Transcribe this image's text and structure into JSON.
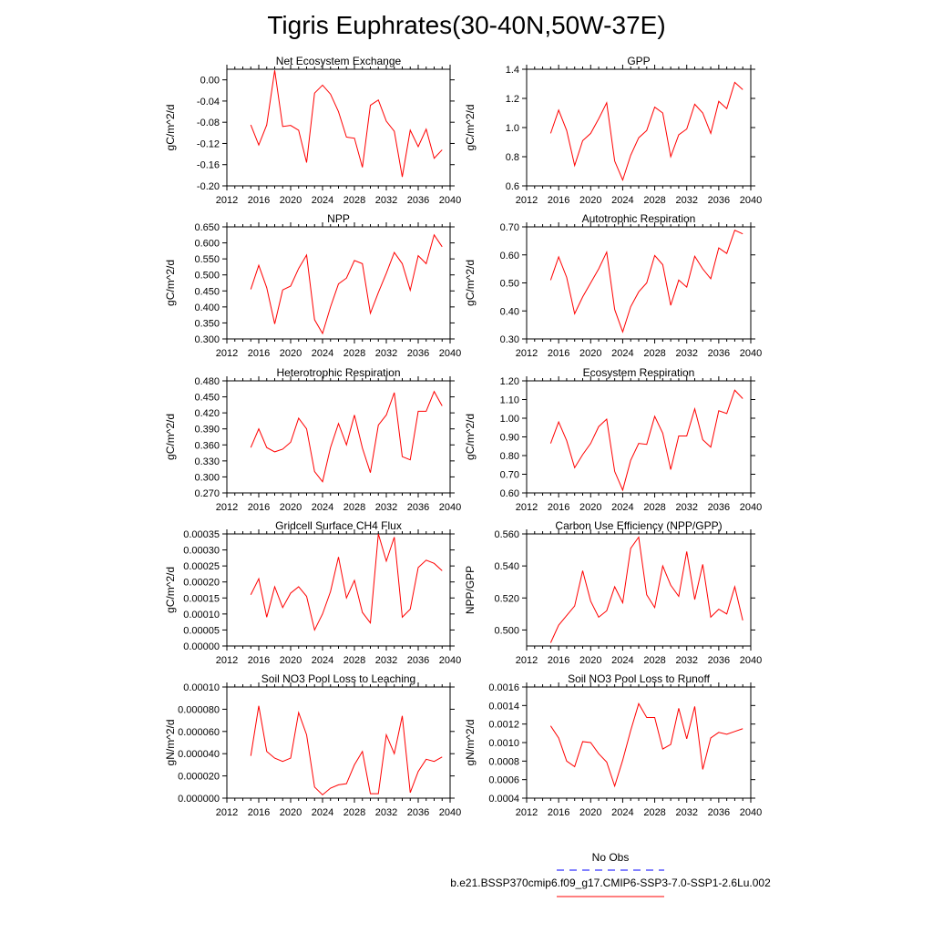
{
  "page": {
    "title": "Tigris Euphrates(30-40N,50W-37E)"
  },
  "legend": {
    "entries": [
      {
        "label": "No Obs",
        "color": "#0000ff",
        "style": "dashed"
      },
      {
        "label": "b.e21.BSSP370cmip6.f09_g17.CMIP6-SSP3-7.0-SSP1-2.6Lu.002",
        "color": "#ff0000",
        "style": "solid"
      }
    ]
  },
  "chart_data": [
    {
      "type": "line",
      "title": "Net Ecosystem Exchange",
      "xlabel": "",
      "ylabel": "gC/m^2/d",
      "xlim": [
        2012,
        2040
      ],
      "ylim": [
        -0.2,
        0.02
      ],
      "xticks": [
        2012,
        2016,
        2020,
        2024,
        2028,
        2032,
        2036,
        2040
      ],
      "yticks": [
        0.0,
        -0.04,
        -0.08,
        -0.12,
        -0.16,
        -0.2
      ],
      "ytick_labels": [
        "0.00",
        "-0.04",
        "-0.08",
        "-0.12",
        "-0.16",
        "-0.20"
      ],
      "color": "#ff0000",
      "x": [
        2015,
        2016,
        2017,
        2018,
        2019,
        2020,
        2021,
        2022,
        2023,
        2024,
        2025,
        2026,
        2027,
        2028,
        2029,
        2030,
        2031,
        2032,
        2033,
        2034,
        2035,
        2036,
        2037,
        2038,
        2039
      ],
      "values": [
        -0.085,
        -0.123,
        -0.085,
        0.018,
        -0.088,
        -0.086,
        -0.095,
        -0.156,
        -0.025,
        -0.01,
        -0.027,
        -0.06,
        -0.108,
        -0.11,
        -0.165,
        -0.048,
        -0.038,
        -0.078,
        -0.097,
        -0.183,
        -0.095,
        -0.126,
        -0.093,
        -0.148,
        -0.132
      ]
    },
    {
      "type": "line",
      "title": "GPP",
      "xlabel": "",
      "ylabel": "gC/m^2/d",
      "xlim": [
        2012,
        2040
      ],
      "ylim": [
        0.6,
        1.4
      ],
      "xticks": [
        2012,
        2016,
        2020,
        2024,
        2028,
        2032,
        2036,
        2040
      ],
      "yticks": [
        0.6,
        0.8,
        1.0,
        1.2,
        1.4
      ],
      "ytick_labels": [
        "0.6",
        "0.8",
        "1.0",
        "1.2",
        "1.4"
      ],
      "color": "#ff0000",
      "x": [
        2015,
        2016,
        2017,
        2018,
        2019,
        2020,
        2021,
        2022,
        2023,
        2024,
        2025,
        2026,
        2027,
        2028,
        2029,
        2030,
        2031,
        2032,
        2033,
        2034,
        2035,
        2036,
        2037,
        2038,
        2039
      ],
      "values": [
        0.96,
        1.12,
        0.98,
        0.74,
        0.91,
        0.96,
        1.06,
        1.17,
        0.77,
        0.64,
        0.81,
        0.93,
        0.98,
        1.14,
        1.1,
        0.8,
        0.95,
        0.99,
        1.16,
        1.1,
        0.96,
        1.18,
        1.13,
        1.31,
        1.26
      ]
    },
    {
      "type": "line",
      "title": "NPP",
      "xlabel": "",
      "ylabel": "gC/m^2/d",
      "xlim": [
        2012,
        2040
      ],
      "ylim": [
        0.3,
        0.65
      ],
      "xticks": [
        2012,
        2016,
        2020,
        2024,
        2028,
        2032,
        2036,
        2040
      ],
      "yticks": [
        0.3,
        0.35,
        0.4,
        0.45,
        0.5,
        0.55,
        0.6,
        0.65
      ],
      "ytick_labels": [
        "0.300",
        "0.350",
        "0.400",
        "0.450",
        "0.500",
        "0.550",
        "0.600",
        "0.650"
      ],
      "color": "#ff0000",
      "x": [
        2015,
        2016,
        2017,
        2018,
        2019,
        2020,
        2021,
        2022,
        2023,
        2024,
        2025,
        2026,
        2027,
        2028,
        2029,
        2030,
        2031,
        2032,
        2033,
        2034,
        2035,
        2036,
        2037,
        2038,
        2039
      ],
      "values": [
        0.455,
        0.53,
        0.46,
        0.347,
        0.453,
        0.465,
        0.52,
        0.562,
        0.36,
        0.317,
        0.4,
        0.472,
        0.49,
        0.545,
        0.535,
        0.38,
        0.445,
        0.505,
        0.57,
        0.535,
        0.452,
        0.56,
        0.535,
        0.625,
        0.588
      ]
    },
    {
      "type": "line",
      "title": "Autotrophic Respiration",
      "xlabel": "",
      "ylabel": "gC/m^2/d",
      "xlim": [
        2012,
        2040
      ],
      "ylim": [
        0.3,
        0.7
      ],
      "xticks": [
        2012,
        2016,
        2020,
        2024,
        2028,
        2032,
        2036,
        2040
      ],
      "yticks": [
        0.3,
        0.4,
        0.5,
        0.6,
        0.7
      ],
      "ytick_labels": [
        "0.30",
        "0.40",
        "0.50",
        "0.60",
        "0.70"
      ],
      "color": "#ff0000",
      "x": [
        2015,
        2016,
        2017,
        2018,
        2019,
        2020,
        2021,
        2022,
        2023,
        2024,
        2025,
        2026,
        2027,
        2028,
        2029,
        2030,
        2031,
        2032,
        2033,
        2034,
        2035,
        2036,
        2037,
        2038,
        2039
      ],
      "values": [
        0.51,
        0.593,
        0.52,
        0.39,
        0.45,
        0.5,
        0.55,
        0.61,
        0.405,
        0.325,
        0.415,
        0.468,
        0.5,
        0.598,
        0.565,
        0.42,
        0.51,
        0.485,
        0.595,
        0.55,
        0.515,
        0.625,
        0.605,
        0.688,
        0.675
      ]
    },
    {
      "type": "line",
      "title": "Heterotrophic Respiration",
      "xlabel": "",
      "ylabel": "gC/m^2/d",
      "xlim": [
        2012,
        2040
      ],
      "ylim": [
        0.27,
        0.48
      ],
      "xticks": [
        2012,
        2016,
        2020,
        2024,
        2028,
        2032,
        2036,
        2040
      ],
      "yticks": [
        0.27,
        0.3,
        0.33,
        0.36,
        0.39,
        0.42,
        0.45,
        0.48
      ],
      "ytick_labels": [
        "0.270",
        "0.300",
        "0.330",
        "0.360",
        "0.390",
        "0.420",
        "0.450",
        "0.480"
      ],
      "color": "#ff0000",
      "x": [
        2015,
        2016,
        2017,
        2018,
        2019,
        2020,
        2021,
        2022,
        2023,
        2024,
        2025,
        2026,
        2027,
        2028,
        2029,
        2030,
        2031,
        2032,
        2033,
        2034,
        2035,
        2036,
        2037,
        2038,
        2039
      ],
      "values": [
        0.355,
        0.39,
        0.355,
        0.347,
        0.352,
        0.365,
        0.41,
        0.39,
        0.31,
        0.291,
        0.355,
        0.4,
        0.36,
        0.416,
        0.354,
        0.308,
        0.397,
        0.416,
        0.458,
        0.338,
        0.332,
        0.423,
        0.423,
        0.46,
        0.433
      ]
    },
    {
      "type": "line",
      "title": "Ecosystem Respiration",
      "xlabel": "",
      "ylabel": "gC/m^2/d",
      "xlim": [
        2012,
        2040
      ],
      "ylim": [
        0.6,
        1.2
      ],
      "xticks": [
        2012,
        2016,
        2020,
        2024,
        2028,
        2032,
        2036,
        2040
      ],
      "yticks": [
        0.6,
        0.7,
        0.8,
        0.9,
        1.0,
        1.1,
        1.2
      ],
      "ytick_labels": [
        "0.60",
        "0.70",
        "0.80",
        "0.90",
        "1.00",
        "1.10",
        "1.20"
      ],
      "color": "#ff0000",
      "x": [
        2015,
        2016,
        2017,
        2018,
        2019,
        2020,
        2021,
        2022,
        2023,
        2024,
        2025,
        2026,
        2027,
        2028,
        2029,
        2030,
        2031,
        2032,
        2033,
        2034,
        2035,
        2036,
        2037,
        2038,
        2039
      ],
      "values": [
        0.865,
        0.98,
        0.88,
        0.735,
        0.805,
        0.865,
        0.955,
        0.995,
        0.715,
        0.615,
        0.775,
        0.865,
        0.86,
        1.01,
        0.92,
        0.725,
        0.905,
        0.905,
        1.05,
        0.885,
        0.845,
        1.04,
        1.025,
        1.15,
        1.105
      ]
    },
    {
      "type": "line",
      "title": "Gridcell Surface CH4 Flux",
      "xlabel": "",
      "ylabel": "gC/m^2/d",
      "xlim": [
        2012,
        2040
      ],
      "ylim": [
        0,
        0.00035
      ],
      "xticks": [
        2012,
        2016,
        2020,
        2024,
        2028,
        2032,
        2036,
        2040
      ],
      "yticks": [
        0,
        5e-05,
        0.0001,
        0.00015,
        0.0002,
        0.00025,
        0.0003,
        0.00035
      ],
      "ytick_labels": [
        "0.00000",
        "0.00005",
        "0.00010",
        "0.00015",
        "0.00020",
        "0.00025",
        "0.00030",
        "0.00035"
      ],
      "color": "#ff0000",
      "x": [
        2015,
        2016,
        2017,
        2018,
        2019,
        2020,
        2021,
        2022,
        2023,
        2024,
        2025,
        2026,
        2027,
        2028,
        2029,
        2030,
        2031,
        2032,
        2033,
        2034,
        2035,
        2036,
        2037,
        2038,
        2039
      ],
      "values": [
        0.00016,
        0.00021,
        9e-05,
        0.000185,
        0.00012,
        0.000165,
        0.000185,
        0.000155,
        5e-05,
        0.0001,
        0.00017,
        0.000278,
        0.00015,
        0.000205,
        0.000105,
        7.2e-05,
        0.00035,
        0.000265,
        0.00034,
        9e-05,
        0.000115,
        0.000245,
        0.000268,
        0.000258,
        0.000235
      ]
    },
    {
      "type": "line",
      "title": "Carbon Use Efficiency (NPP/GPP)",
      "xlabel": "",
      "ylabel": "NPP/GPP",
      "xlim": [
        2012,
        2040
      ],
      "ylim": [
        0.49,
        0.56
      ],
      "xticks": [
        2012,
        2016,
        2020,
        2024,
        2028,
        2032,
        2036,
        2040
      ],
      "yticks": [
        0.5,
        0.52,
        0.54,
        0.56
      ],
      "ytick_labels": [
        "0.500",
        "0.520",
        "0.540",
        "0.560"
      ],
      "color": "#ff0000",
      "x": [
        2015,
        2016,
        2017,
        2018,
        2019,
        2020,
        2021,
        2022,
        2023,
        2024,
        2025,
        2026,
        2027,
        2028,
        2029,
        2030,
        2031,
        2032,
        2033,
        2034,
        2035,
        2036,
        2037,
        2038,
        2039
      ],
      "values": [
        0.492,
        0.503,
        0.509,
        0.515,
        0.537,
        0.518,
        0.508,
        0.512,
        0.527,
        0.517,
        0.551,
        0.558,
        0.522,
        0.514,
        0.54,
        0.528,
        0.521,
        0.549,
        0.519,
        0.541,
        0.508,
        0.513,
        0.51,
        0.527,
        0.506
      ]
    },
    {
      "type": "line",
      "title": "Soil NO3 Pool Loss to Leaching",
      "xlabel": "",
      "ylabel": "gN/m^2/d",
      "xlim": [
        2012,
        2040
      ],
      "ylim": [
        0,
        0.0001
      ],
      "xticks": [
        2012,
        2016,
        2020,
        2024,
        2028,
        2032,
        2036,
        2040
      ],
      "yticks": [
        0,
        2e-05,
        4e-05,
        6e-05,
        8e-05,
        0.0001
      ],
      "ytick_labels": [
        "0.000000",
        "0.000020",
        "0.000040",
        "0.000060",
        "0.000080",
        "0.00010"
      ],
      "color": "#ff0000",
      "x": [
        2015,
        2016,
        2017,
        2018,
        2019,
        2020,
        2021,
        2022,
        2023,
        2024,
        2025,
        2026,
        2027,
        2028,
        2029,
        2030,
        2031,
        2032,
        2033,
        2034,
        2035,
        2036,
        2037,
        2038,
        2039
      ],
      "values": [
        3.8e-05,
        8.3e-05,
        4.2e-05,
        3.6e-05,
        3.3e-05,
        3.6e-05,
        7.7e-05,
        5.7e-05,
        1e-05,
        3e-06,
        9e-06,
        1.2e-05,
        1.3e-05,
        3e-05,
        4.2e-05,
        4e-06,
        4e-06,
        5.7e-05,
        4e-05,
        7.4e-05,
        5e-06,
        2.4e-05,
        3.5e-05,
        3.3e-05,
        3.7e-05
      ]
    },
    {
      "type": "line",
      "title": "Soil NO3 Pool Loss to Runoff",
      "xlabel": "",
      "ylabel": "gN/m^2/d",
      "xlim": [
        2012,
        2040
      ],
      "ylim": [
        0.0004,
        0.0016
      ],
      "xticks": [
        2012,
        2016,
        2020,
        2024,
        2028,
        2032,
        2036,
        2040
      ],
      "yticks": [
        0.0004,
        0.0006,
        0.0008,
        0.001,
        0.0012,
        0.0014,
        0.0016
      ],
      "ytick_labels": [
        "0.0004",
        "0.0006",
        "0.0008",
        "0.0010",
        "0.0012",
        "0.0014",
        "0.0016"
      ],
      "color": "#ff0000",
      "x": [
        2015,
        2016,
        2017,
        2018,
        2019,
        2020,
        2021,
        2022,
        2023,
        2024,
        2025,
        2026,
        2027,
        2028,
        2029,
        2030,
        2031,
        2032,
        2033,
        2034,
        2035,
        2036,
        2037,
        2038,
        2039
      ],
      "values": [
        0.00118,
        0.00105,
        0.0008,
        0.00074,
        0.00101,
        0.001,
        0.00088,
        0.00079,
        0.00053,
        0.00081,
        0.00113,
        0.00142,
        0.00127,
        0.00127,
        0.00093,
        0.00098,
        0.00137,
        0.00104,
        0.00139,
        0.00071,
        0.00105,
        0.00111,
        0.00109,
        0.00112,
        0.00115
      ]
    }
  ]
}
